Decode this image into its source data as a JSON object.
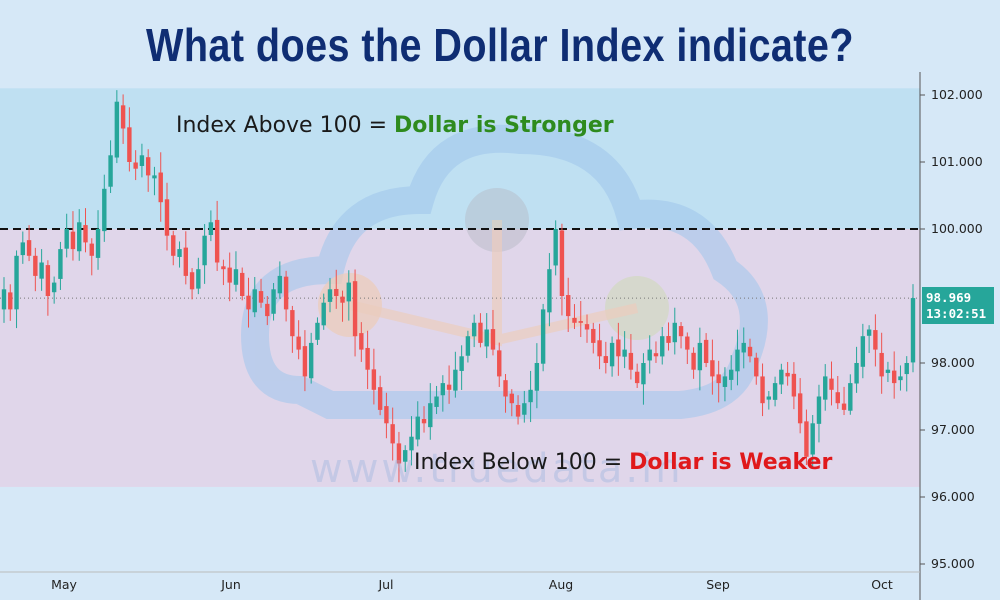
{
  "title": "What does the Dollar Index indicate?",
  "annotations": {
    "above_prefix": "Index Above 100 = ",
    "above_highlight": "Dollar is Stronger",
    "above_color": "#2e8b1e",
    "below_prefix": "Index Below 100 = ",
    "below_highlight": "Dollar is Weaker",
    "below_color": "#e0191b"
  },
  "watermark": "www.truedata.in",
  "price_tag": {
    "value": "98.969",
    "time": "13:02:51",
    "color": "#26a69a"
  },
  "colors": {
    "up": "#26a69a",
    "down": "#ef5350",
    "above_zone": "#bfe0f2",
    "below_zone": "#e0d6ea",
    "title": "#0f2d73"
  },
  "chart_data": {
    "type": "candlestick",
    "title": "What does the Dollar Index indicate?",
    "y_ticks": [
      "102.000",
      "101.000",
      "100.000",
      "98.000",
      "97.000",
      "96.000",
      "95.000"
    ],
    "y_tick_values": [
      102,
      101,
      100,
      98,
      97,
      96,
      95
    ],
    "ylim": [
      95,
      102.2
    ],
    "x_ticks": [
      "May",
      "Jun",
      "Jul",
      "Aug",
      "Sep",
      "Oct"
    ],
    "reference_line": {
      "value": 100,
      "style": "dashed"
    },
    "zones": [
      {
        "from": 100,
        "to": 102.1,
        "label": "Index Above 100 = Dollar is Stronger"
      },
      {
        "from": 96.15,
        "to": 100,
        "label": "Index Below 100 = Dollar is Weaker"
      }
    ],
    "last_price": 98.969,
    "closes": [
      99.1,
      98.8,
      99.6,
      99.8,
      99.6,
      99.3,
      99.5,
      99.0,
      99.2,
      99.7,
      100.0,
      99.7,
      100.1,
      99.8,
      99.6,
      100.0,
      100.6,
      101.1,
      101.9,
      101.5,
      101.0,
      100.9,
      101.1,
      100.8,
      100.8,
      100.4,
      99.9,
      99.6,
      99.7,
      99.3,
      99.1,
      99.4,
      99.9,
      100.1,
      99.5,
      99.4,
      99.2,
      99.4,
      99.0,
      98.8,
      99.1,
      98.9,
      98.7,
      99.1,
      99.3,
      98.8,
      98.4,
      98.2,
      97.8,
      98.3,
      98.6,
      98.9,
      99.1,
      99.0,
      98.9,
      99.2,
      98.4,
      98.2,
      97.9,
      97.6,
      97.3,
      97.1,
      96.8,
      96.5,
      96.7,
      96.9,
      97.2,
      97.1,
      97.4,
      97.5,
      97.7,
      97.6,
      97.9,
      98.1,
      98.4,
      98.6,
      98.3,
      98.5,
      98.2,
      97.8,
      97.5,
      97.4,
      97.2,
      97.4,
      97.6,
      98.0,
      98.8,
      99.4,
      100.0,
      99.0,
      98.7,
      98.6,
      98.6,
      98.5,
      98.3,
      98.1,
      98.0,
      98.3,
      98.1,
      98.2,
      97.9,
      97.7,
      98.0,
      98.2,
      98.1,
      98.4,
      98.3,
      98.6,
      98.4,
      98.2,
      97.9,
      98.3,
      98.0,
      97.8,
      97.7,
      97.8,
      97.9,
      98.2,
      98.3,
      98.1,
      97.8,
      97.4,
      97.5,
      97.7,
      97.9,
      97.8,
      97.5,
      97.1,
      96.6,
      97.1,
      97.5,
      97.8,
      97.6,
      97.4,
      97.3,
      97.7,
      98.0,
      98.4,
      98.5,
      98.2,
      97.8,
      97.9,
      97.7,
      97.8,
      98.0,
      98.969
    ],
    "opens_offset": "derived"
  }
}
